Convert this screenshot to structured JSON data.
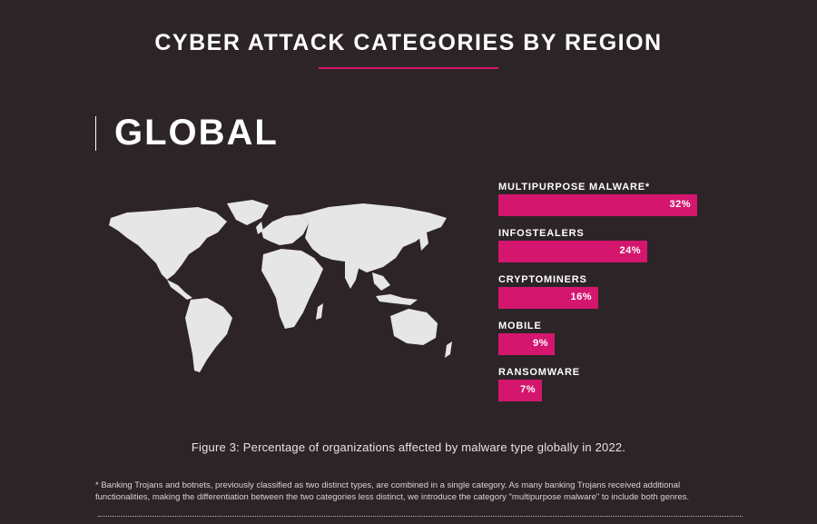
{
  "page": {
    "title": "CYBER ATTACK CATEGORIES BY REGION",
    "region": "GLOBAL",
    "caption": "Figure 3: Percentage of organizations affected by malware type globally in 2022.",
    "footnote": "* Banking Trojans and botnets, previously classified as two distinct types, are combined in a single category. As many banking Trojans received additional functionalities, making the differentiation between the two categories less distinct, we introduce the category \"multipurpose malware\" to include both genres.",
    "colors": {
      "background": "#2d2428",
      "accent": "#d4166e",
      "map": "#e6e6e6"
    }
  },
  "chart_data": {
    "type": "bar",
    "orientation": "horizontal",
    "categories": [
      "MULTIPURPOSE MALWARE*",
      "INFOSTEALERS",
      "CRYPTOMINERS",
      "MOBILE",
      "RANSOMWARE"
    ],
    "values": [
      32,
      24,
      16,
      9,
      7
    ],
    "value_labels": [
      "32%",
      "24%",
      "16%",
      "9%",
      "7%"
    ],
    "unit": "%",
    "color": "#d4166e",
    "grid": false
  }
}
